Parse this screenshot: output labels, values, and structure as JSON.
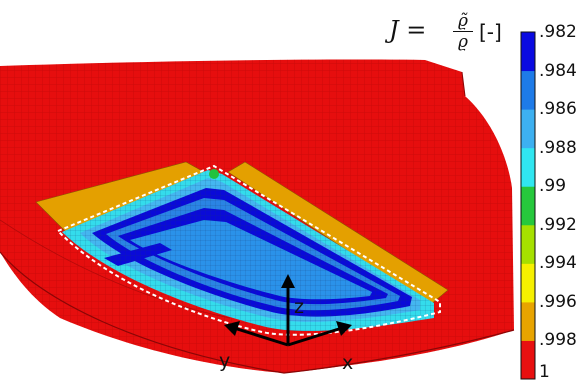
{
  "legend": {
    "formula": {
      "lhs": "J =",
      "numerator": "ϱ̃",
      "denominator": "ϱ",
      "unit": "[-]"
    },
    "ticks": [
      ".982",
      ".984",
      ".986",
      ".988",
      ".99",
      ".992",
      ".994",
      ".996",
      ".998",
      "1"
    ],
    "colors": [
      "#0a0ae0",
      "#1e7be8",
      "#3db0f0",
      "#30e6f0",
      "#26c83c",
      "#a6e000",
      "#f6f000",
      "#e8a400",
      "#e81010"
    ]
  },
  "axes": {
    "x": "x",
    "y": "y",
    "z": "z"
  }
}
